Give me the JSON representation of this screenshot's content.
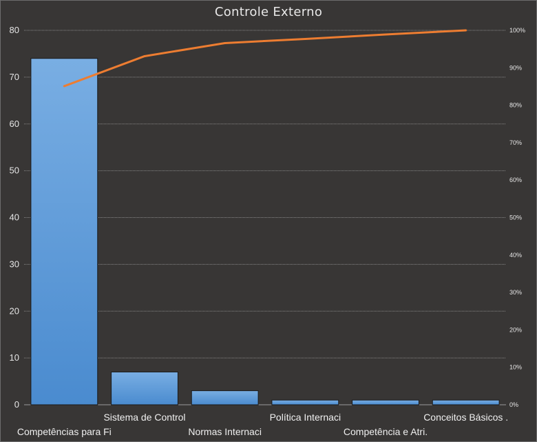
{
  "chart_data": {
    "type": "bar",
    "title": "Controle Externo",
    "categories": [
      "Competências para Fi",
      "Sistema de Control",
      "Normas Internaci",
      "Política Internaci",
      "Competência e Atri.",
      "Conceitos Básicos ."
    ],
    "values": [
      74,
      7,
      3,
      1,
      1,
      1
    ],
    "ylim": [
      0,
      80
    ],
    "yticks": [
      0,
      10,
      20,
      30,
      40,
      50,
      60,
      70,
      80
    ],
    "y2lim": [
      0,
      100
    ],
    "y2ticks": [
      "0%",
      "10%",
      "20%",
      "30%",
      "40%",
      "50%",
      "60%",
      "70%",
      "80%",
      "90%",
      "100%"
    ],
    "cumulative_percent": [
      85.1,
      93.1,
      96.6,
      97.7,
      98.9,
      100
    ],
    "grid": true,
    "colors": {
      "bar": "#4f92d6",
      "bar_top": "#78aee4",
      "line": "#ed7d31",
      "grid": "#8a8a8a",
      "background": "#383635"
    }
  }
}
